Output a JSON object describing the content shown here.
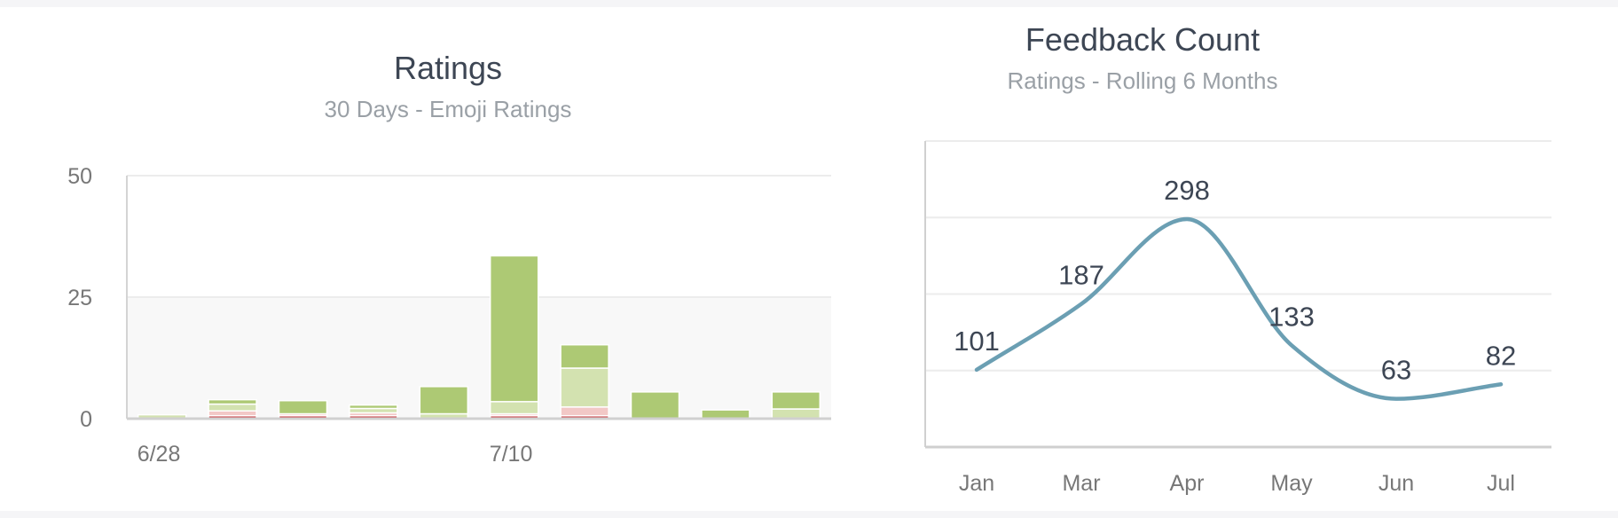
{
  "chart_data": [
    {
      "type": "bar",
      "stacked": true,
      "title": "Ratings",
      "subtitle": "30 Days - Emoji Ratings",
      "ylim": [
        0,
        50
      ],
      "y_ticks": [
        "0",
        "25",
        "50"
      ],
      "x_ticks": [
        "6/28",
        "7/10"
      ],
      "grid": true,
      "series": [
        {
          "name": "",
          "color": "#c8383d",
          "values": [
            0,
            0.6,
            0.6,
            0.6,
            0,
            0.6,
            0.6,
            0,
            0,
            0
          ]
        },
        {
          "name": "",
          "color": "#f2c8c6",
          "values": [
            0,
            1.0,
            0.4,
            0.6,
            0,
            0.4,
            1.8,
            0,
            0,
            0
          ]
        },
        {
          "name": "",
          "color": "#d3e2b0",
          "values": [
            0.8,
            1.4,
            0,
            0.9,
            1.0,
            2.5,
            8.0,
            0,
            0,
            2.0
          ]
        },
        {
          "name": "",
          "color": "#adc974",
          "values": [
            0,
            0.9,
            2.7,
            0.7,
            5.6,
            30.0,
            4.8,
            5.5,
            1.8,
            3.5
          ]
        }
      ]
    },
    {
      "type": "line",
      "title": "Feedback Count",
      "subtitle": "Ratings - Rolling 6 Months",
      "categories": [
        "Jan",
        "Mar",
        "Apr",
        "May",
        "Jun",
        "Jul"
      ],
      "values": [
        101,
        187,
        298,
        133,
        63,
        82
      ],
      "color": "#6b9fb3",
      "ylim": [
        0,
        400
      ],
      "grid": true
    }
  ]
}
